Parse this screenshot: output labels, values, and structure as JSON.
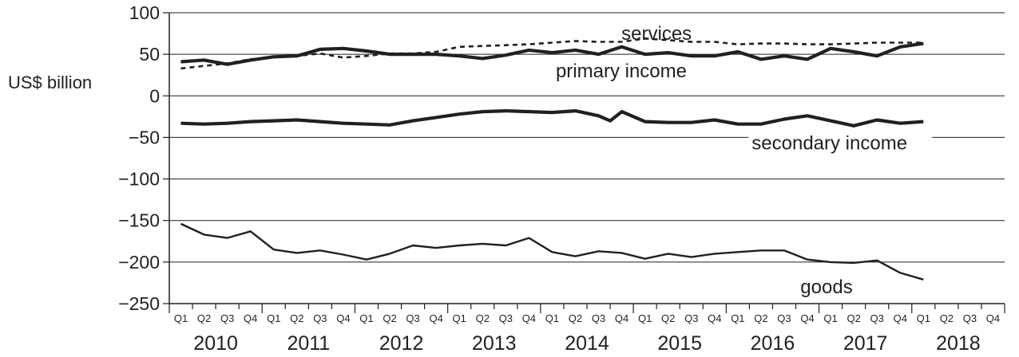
{
  "chart_data": {
    "type": "line",
    "ylabel": "US$ billion",
    "xlabel": "",
    "title": "",
    "ylim": [
      -250,
      100
    ],
    "yticks": [
      100,
      50,
      0,
      -50,
      -100,
      -150,
      -200,
      -250
    ],
    "ytick_labels": [
      "100",
      "50",
      "0",
      "−50",
      "−100",
      "−150",
      "−200",
      "−250"
    ],
    "grid": "horizontal",
    "quarter_labels": [
      "Q1",
      "Q2",
      "Q3",
      "Q4"
    ],
    "years": [
      "2010",
      "2011",
      "2012",
      "2013",
      "2014",
      "2015",
      "2016",
      "2017",
      "2018"
    ],
    "x_range_quarters": [
      0,
      36
    ],
    "series": [
      {
        "name": "services",
        "style": "dashed",
        "x": [
          0,
          1,
          2,
          3,
          4,
          5,
          6,
          7,
          8,
          9,
          10,
          11,
          12,
          13,
          14,
          15,
          16,
          17,
          18,
          19,
          20,
          21,
          22,
          23,
          24,
          25,
          26,
          27,
          28,
          29,
          30,
          31,
          32
        ],
        "values": [
          33,
          36,
          39,
          44,
          47,
          48,
          51,
          46,
          48,
          51,
          51,
          53,
          59,
          60,
          61,
          62,
          64,
          66,
          65,
          65,
          69,
          67,
          65,
          65,
          62,
          63,
          63,
          62,
          62,
          63,
          64,
          64,
          64
        ]
      },
      {
        "name": "primary income",
        "style": "thick",
        "x": [
          0,
          1,
          2,
          3,
          4,
          5,
          6,
          7,
          8,
          9,
          10,
          11,
          12,
          13,
          14,
          15,
          16,
          17,
          18,
          19,
          20,
          21,
          22,
          23,
          24,
          25,
          26,
          27,
          28,
          29,
          30,
          31,
          32
        ],
        "values": [
          41,
          43,
          38,
          43,
          47,
          48,
          56,
          57,
          54,
          50,
          50,
          50,
          48,
          45,
          49,
          55,
          52,
          55,
          50,
          59,
          50,
          52,
          48,
          48,
          53,
          44,
          48,
          44,
          57,
          53,
          48,
          59,
          63
        ]
      },
      {
        "name": "secondary income",
        "style": "thick",
        "x": [
          0,
          1,
          2,
          3,
          4,
          5,
          6,
          7,
          8,
          9,
          10,
          11,
          12,
          13,
          14,
          15,
          16,
          17,
          18,
          18.5,
          19,
          20,
          21,
          22,
          23,
          24,
          25,
          26,
          27,
          28,
          29,
          30,
          31,
          32
        ],
        "values": [
          -33,
          -34,
          -33,
          -31,
          -30,
          -29,
          -31,
          -33,
          -34,
          -35,
          -30,
          -26,
          -22,
          -19,
          -18,
          -19,
          -20,
          -18,
          -24,
          -30,
          -19,
          -31,
          -32,
          -32,
          -29,
          -34,
          -34,
          -28,
          -24,
          -30,
          -36,
          -29,
          -33,
          -31
        ]
      },
      {
        "name": "goods",
        "style": "thin",
        "x": [
          0,
          1,
          2,
          3,
          4,
          5,
          6,
          7,
          8,
          9,
          10,
          11,
          12,
          13,
          14,
          15,
          16,
          17,
          18,
          19,
          20,
          21,
          22,
          23,
          24,
          25,
          26,
          27,
          28,
          29,
          30,
          31,
          32
        ],
        "values": [
          -154,
          -167,
          -171,
          -163,
          -185,
          -189,
          -186,
          -191,
          -197,
          -190,
          -180,
          -183,
          -180,
          -178,
          -180,
          -171,
          -188,
          -193,
          -187,
          -189,
          -196,
          -190,
          -194,
          -190,
          -188,
          -186,
          -186,
          -197,
          -200,
          -201,
          -198,
          -213,
          -221
        ]
      }
    ]
  }
}
